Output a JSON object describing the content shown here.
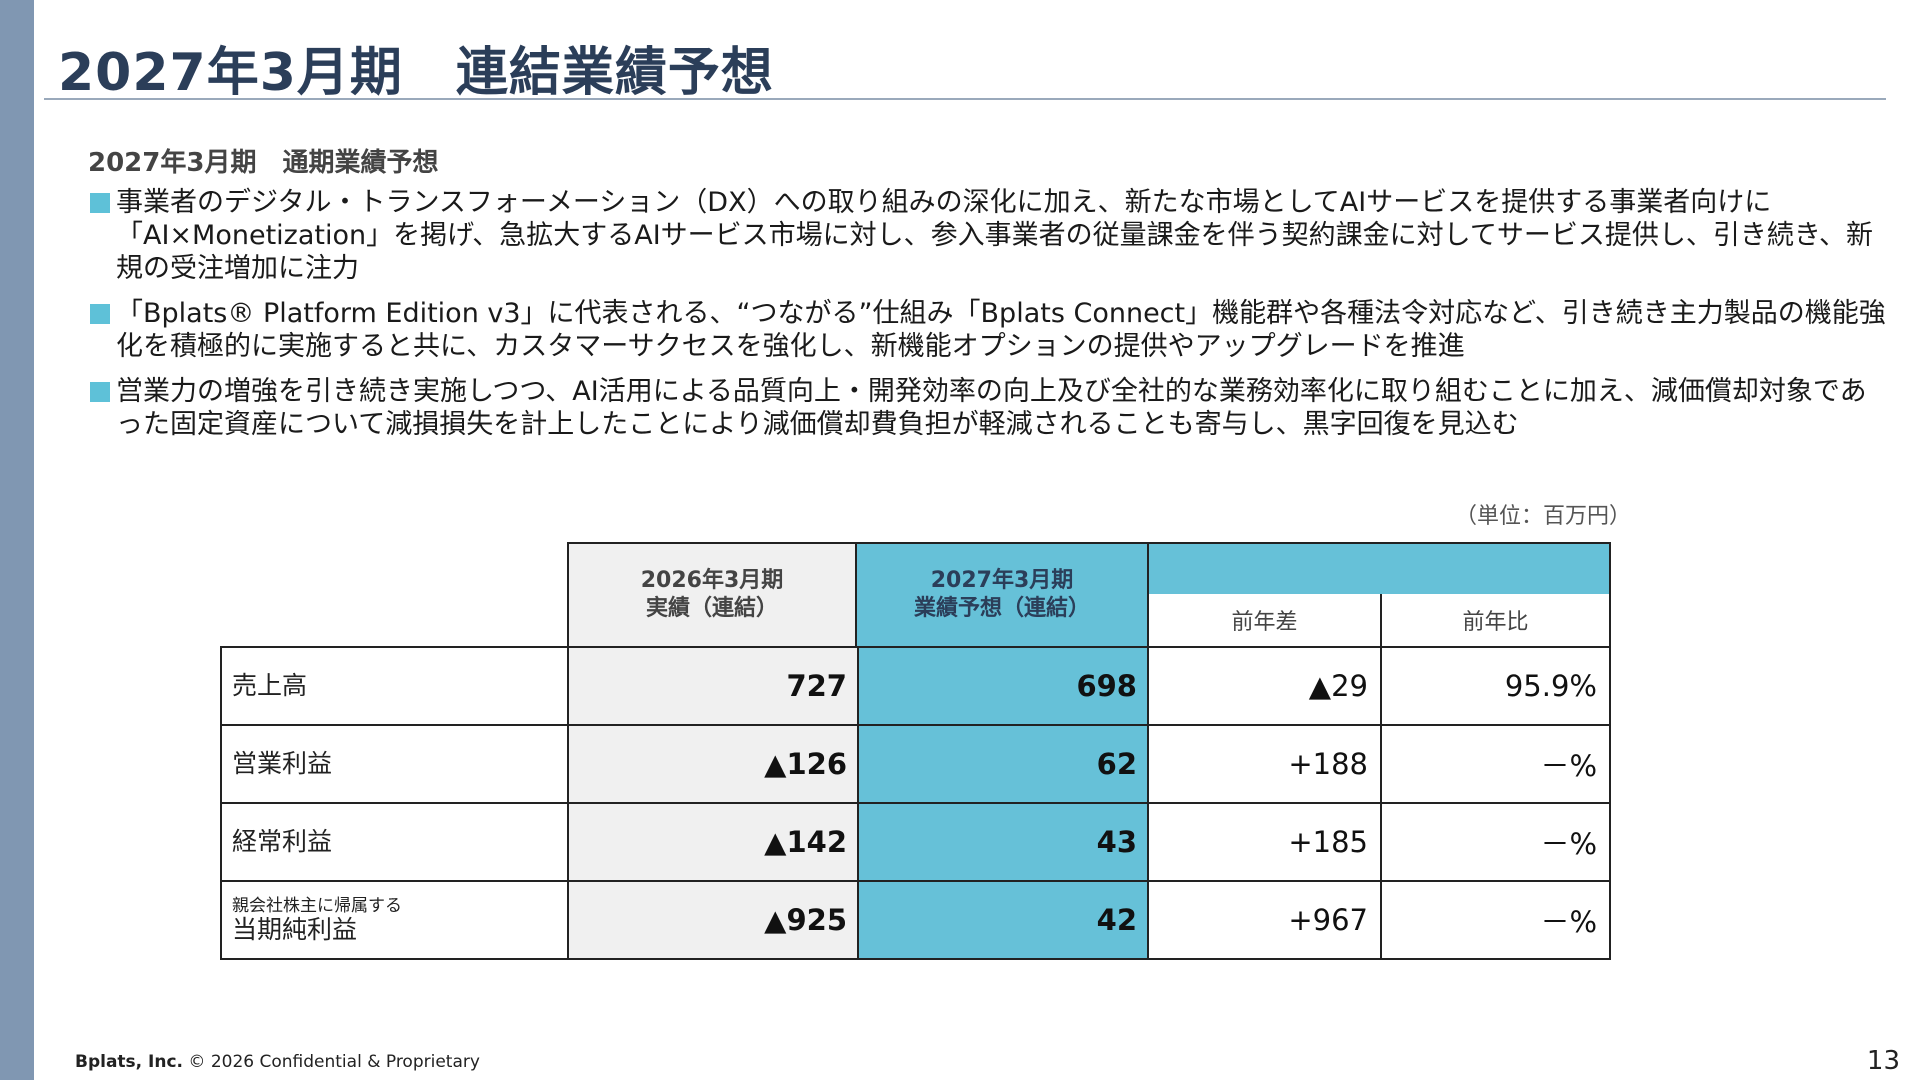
{
  "slide": {
    "title": "2027年3月期　連結業績予想",
    "subtitle": "2027年3月期　通期業績予想",
    "bullets": [
      "事業者のデジタル・トランスフォーメーション（DX）への取り組みの深化に加え、新たな市場としてAIサービスを提供する事業者向けに「AI×Monetization」を掲げ、急拡大するAIサービス市場に対し、参入事業者の従量課金を伴う契約課金に対してサービス提供し、引き続き、新規の受注増加に注力",
      "「Bplats® Platform Edition v3」に代表される、“つながる”仕組み「Bplats Connect」機能群や各種法令対応など、引き続き主力製品の機能強化を積極的に実施すると共に、カスタマーサクセスを強化し、新機能オプションの提供やアップグレードを推進",
      "営業力の増強を引き続き実施しつつ、AI活用による品質向上・開発効率の向上及び全社的な業務効率化に取り組むことに加え、減価償却対象であった固定資産について減損損失を計上したことにより減価償却費負担が軽減されることも寄与し、黒字回復を見込む"
    ],
    "unit_note": "（単位：百万円）",
    "footer_company": "Bplats, Inc.",
    "footer_rest": " © 2026 Confidential & Proprietary",
    "page_number": "13"
  },
  "table": {
    "col_prev_line1": "2026年3月期",
    "col_prev_line2": "実績（連結）",
    "col_fc_line1": "2027年3月期",
    "col_fc_line2": "業績予想（連結）",
    "col_diff": "前年差",
    "col_ratio": "前年比",
    "rows": [
      {
        "label_small": "",
        "label": "売上高",
        "prev": "727",
        "forecast": "698",
        "diff": "▲29",
        "ratio": "95.9%"
      },
      {
        "label_small": "",
        "label": "営業利益",
        "prev": "▲126",
        "forecast": "62",
        "diff": "+188",
        "ratio": "－%"
      },
      {
        "label_small": "",
        "label": "経常利益",
        "prev": "▲142",
        "forecast": "43",
        "diff": "+185",
        "ratio": "－%"
      },
      {
        "label_small": "親会社株主に帰属する",
        "label": "当期純利益",
        "prev": "▲925",
        "forecast": "42",
        "diff": "+967",
        "ratio": "－%"
      }
    ]
  },
  "colors": {
    "accent": "#66c1d8",
    "title": "#2b3e59",
    "sidebar": "#8097b2"
  }
}
